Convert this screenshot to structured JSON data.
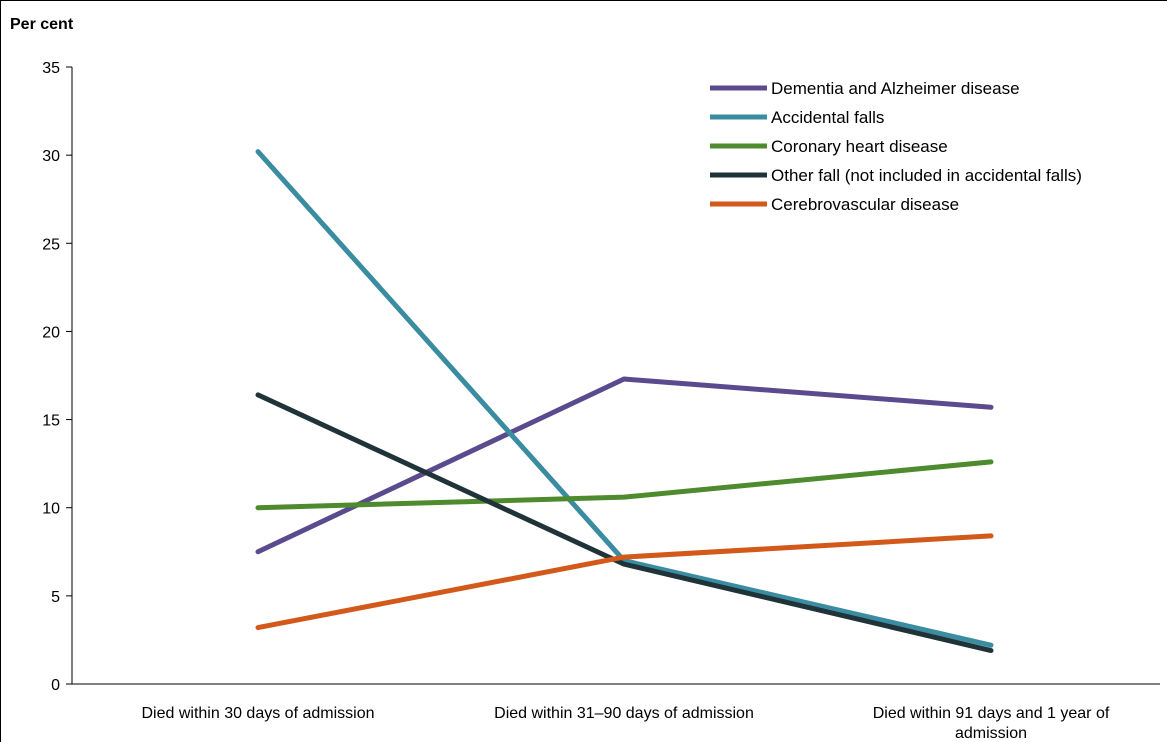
{
  "chart_data": {
    "type": "line",
    "title": "",
    "xlabel": "",
    "ylabel": "Per cent",
    "ylim": [
      0,
      35
    ],
    "yticks": [
      0,
      5,
      10,
      15,
      20,
      25,
      30,
      35
    ],
    "grid": false,
    "legend_position": "top-right",
    "categories": [
      "Died within 30 days of admission",
      "Died within 31–90 days of admission",
      "Died within 91 days and 1 year of admission"
    ],
    "series": [
      {
        "name": "Dementia and Alzheimer disease",
        "color": "#5b4a8e",
        "values": [
          7.5,
          17.3,
          15.7
        ]
      },
      {
        "name": "Accidental falls",
        "color": "#3a8ca0",
        "values": [
          30.2,
          7.0,
          2.2
        ]
      },
      {
        "name": "Coronary heart disease",
        "color": "#4e8a2e",
        "values": [
          10.0,
          10.6,
          12.6
        ]
      },
      {
        "name": "Other fall (not included in accidental falls)",
        "color": "#1f3339",
        "values": [
          16.4,
          6.8,
          1.9
        ]
      },
      {
        "name": "Cerebrovascular disease",
        "color": "#d2591a",
        "values": [
          3.2,
          7.2,
          8.4
        ]
      }
    ]
  }
}
